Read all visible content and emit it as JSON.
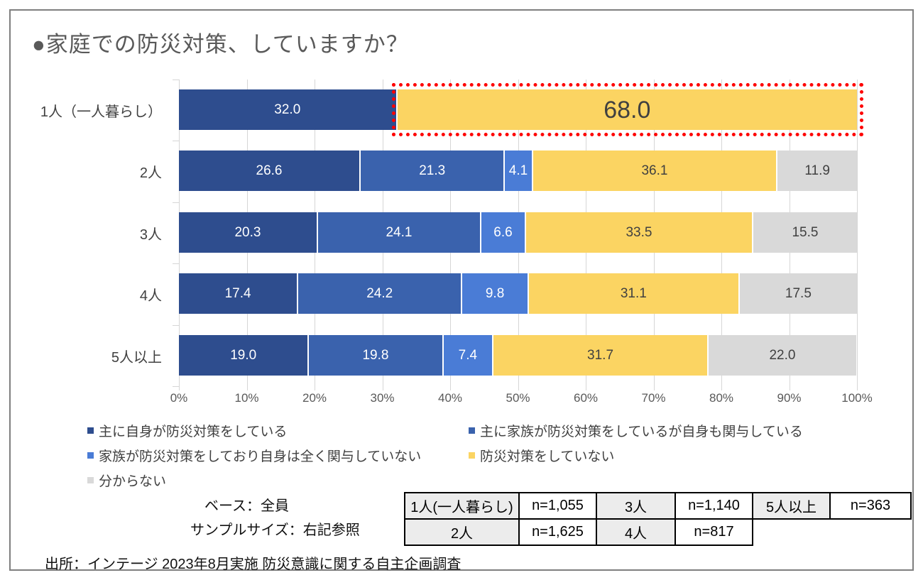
{
  "title": "●家庭での防災対策、していますか？",
  "chart_data": {
    "type": "bar",
    "orientation": "horizontal",
    "stacked": true,
    "unit": "%",
    "xlim": [
      0,
      100
    ],
    "grid": true,
    "x_ticks": [
      "0%",
      "10%",
      "20%",
      "30%",
      "40%",
      "50%",
      "60%",
      "70%",
      "80%",
      "90%",
      "100%"
    ],
    "categories": [
      "1人（一人暮らし）",
      "2人",
      "3人",
      "4人",
      "5人以上"
    ],
    "series": [
      {
        "name": "主に自身が防災対策をしている",
        "color": "#2e4d8e",
        "label_color": "#ffffff",
        "values": [
          32.0,
          26.6,
          20.3,
          17.4,
          19.0
        ]
      },
      {
        "name": "主に家族が防災対策をしているが自身も関与している",
        "color": "#3a62ad",
        "label_color": "#ffffff",
        "values": [
          null,
          21.3,
          24.1,
          24.2,
          19.8
        ]
      },
      {
        "name": "家族が防災対策をしており自身は全く関与していない",
        "color": "#4a7cd6",
        "label_color": "#ffffff",
        "values": [
          null,
          4.1,
          6.6,
          9.8,
          7.4
        ]
      },
      {
        "name": "防災対策をしていない",
        "color": "#fbd462",
        "label_color": "#404040",
        "values": [
          68.0,
          36.1,
          33.5,
          31.1,
          31.7
        ]
      },
      {
        "name": "分からない",
        "color": "#d9d9d9",
        "label_color": "#404040",
        "values": [
          null,
          11.9,
          15.5,
          17.5,
          22.0
        ]
      }
    ],
    "highlight": {
      "category_index": 0,
      "series_index": 3,
      "style": "red-dotted-box"
    },
    "legend_position": "bottom-left"
  },
  "notes": {
    "base": "ベース：全員",
    "sample": "サンプルサイズ：右記参照"
  },
  "sample_table": {
    "rows": [
      [
        {
          "text": "1人(一人暮らし)",
          "kind": "header"
        },
        {
          "text": "n=1,055",
          "kind": "value"
        },
        {
          "text": "3人",
          "kind": "header"
        },
        {
          "text": "n=1,140",
          "kind": "value"
        },
        {
          "text": "5人以上",
          "kind": "header"
        },
        {
          "text": "n=363",
          "kind": "value"
        }
      ],
      [
        {
          "text": "2人",
          "kind": "header"
        },
        {
          "text": "n=1,625",
          "kind": "value"
        },
        {
          "text": "4人",
          "kind": "header"
        },
        {
          "text": "n=817",
          "kind": "value"
        }
      ]
    ]
  },
  "source": "出所：インテージ 2023年8月実施 防災意識に関する自主企画調査",
  "colors": {
    "frame_border": "#7f7f7f",
    "title_text": "#595959",
    "gridline": "#d6d6d6",
    "axis_text": "#595959",
    "category_text": "#404040",
    "highlight_border": "#fe0000",
    "table_header_bg": "#ececec"
  }
}
